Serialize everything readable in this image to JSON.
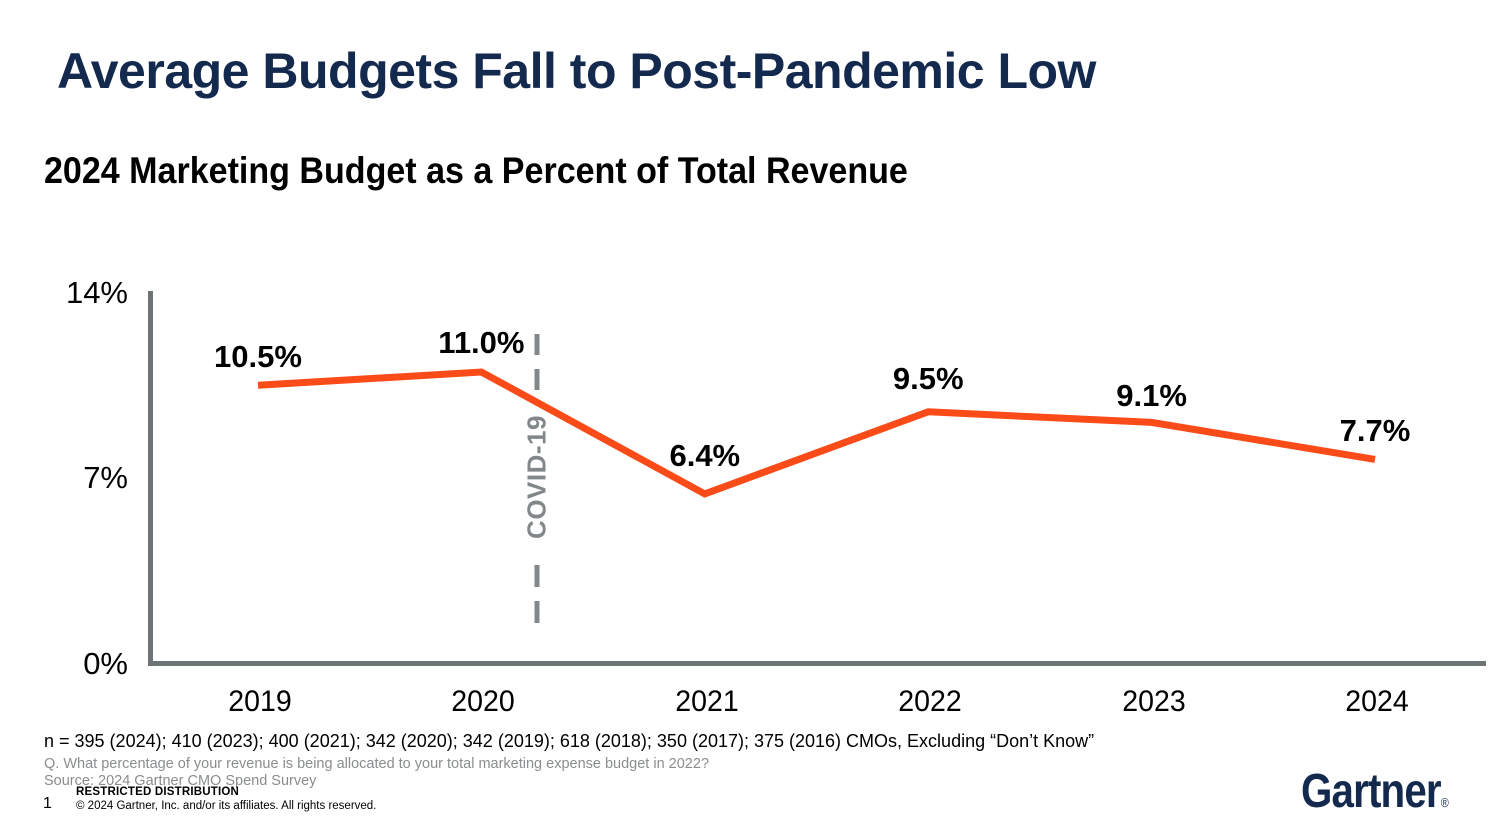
{
  "slide": {
    "title": "Average Budgets Fall to Post-Pandemic Low",
    "subtitle": "2024 Marketing Budget as a Percent of Total Revenue"
  },
  "chart_data": {
    "type": "line",
    "title": "2024 Marketing Budget as a Percent of Total Revenue",
    "categories": [
      "2019",
      "2020",
      "2021",
      "2022",
      "2023",
      "2024"
    ],
    "values": [
      10.5,
      11.0,
      6.4,
      9.5,
      9.1,
      7.7
    ],
    "point_labels": [
      "10.5%",
      "11.0%",
      "6.4%",
      "9.5%",
      "9.1%",
      "7.7%"
    ],
    "label_dy": [
      -28,
      -29,
      -38,
      -33,
      -26,
      -28
    ],
    "y_ticks": [
      {
        "label": "14%",
        "value": 14
      },
      {
        "label": "7%",
        "value": 7
      },
      {
        "label": "0%",
        "value": 0
      }
    ],
    "ylim": [
      0,
      14
    ],
    "xlabel": "",
    "ylabel": "",
    "grid": false,
    "legend": false,
    "annotation": {
      "text": "COVID-19",
      "between": [
        "2020",
        "2021"
      ]
    },
    "line_color": "#FA4B19",
    "axis_color": "#6E7376",
    "annotation_color": "#82878A"
  },
  "footer": {
    "sample_note": "n = 395 (2024); 410 (2023); 400 (2021); 342 (2020); 342 (2019); 618 (2018); 350 (2017); 375 (2016) CMOs, Excluding “Don’t Know”",
    "question": "Q. What percentage of your revenue is being allocated to your total marketing expense budget in 2022?",
    "source": "Source: 2024 Gartner CMO Spend Survey",
    "restriction": "RESTRICTED DISTRIBUTION",
    "copyright": "© 2024 Gartner, Inc. and/or its affiliates. All rights reserved.",
    "page_number": "1"
  },
  "logo": {
    "text": "Gartner",
    "reg_mark": "®",
    "color": "#13294D"
  }
}
